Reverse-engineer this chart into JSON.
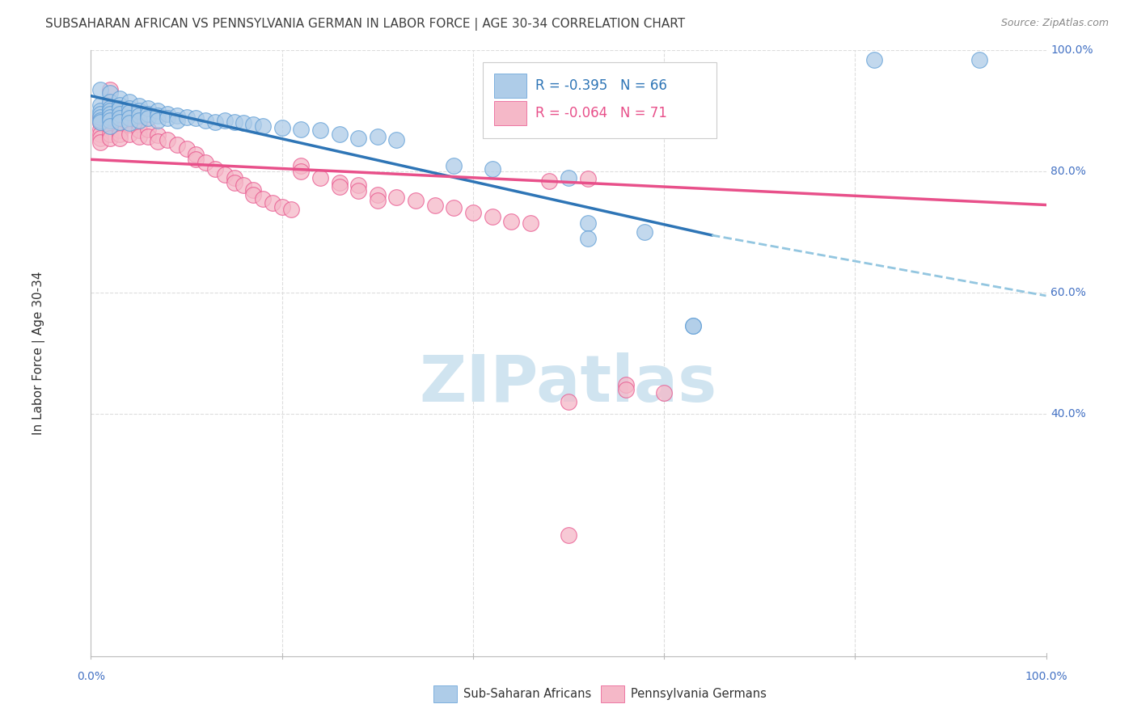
{
  "title": "SUBSAHARAN AFRICAN VS PENNSYLVANIA GERMAN IN LABOR FORCE | AGE 30-34 CORRELATION CHART",
  "source": "Source: ZipAtlas.com",
  "ylabel": "In Labor Force | Age 30-34",
  "xlim": [
    0.0,
    1.0
  ],
  "ylim": [
    0.0,
    1.0
  ],
  "legend_r_blue": "-0.395",
  "legend_n_blue": "66",
  "legend_r_pink": "-0.064",
  "legend_n_pink": "71",
  "blue_fill": "#AECCE8",
  "pink_fill": "#F5B8C8",
  "blue_edge": "#5B9BD5",
  "pink_edge": "#E8508A",
  "trendline_blue_solid": "#2E75B6",
  "trendline_pink_solid": "#E8508A",
  "trendline_blue_dash": "#93C6E0",
  "watermark_color": "#D0E4F0",
  "background_color": "#FFFFFF",
  "gridline_color": "#DDDDDD",
  "axis_label_color": "#4472C4",
  "title_color": "#404040",
  "blue_scatter": [
    [
      0.01,
      0.935
    ],
    [
      0.01,
      0.91
    ],
    [
      0.01,
      0.9
    ],
    [
      0.01,
      0.895
    ],
    [
      0.01,
      0.89
    ],
    [
      0.01,
      0.885
    ],
    [
      0.01,
      0.882
    ],
    [
      0.02,
      0.93
    ],
    [
      0.02,
      0.915
    ],
    [
      0.02,
      0.905
    ],
    [
      0.02,
      0.9
    ],
    [
      0.02,
      0.895
    ],
    [
      0.02,
      0.89
    ],
    [
      0.02,
      0.885
    ],
    [
      0.02,
      0.875
    ],
    [
      0.03,
      0.92
    ],
    [
      0.03,
      0.91
    ],
    [
      0.03,
      0.905
    ],
    [
      0.03,
      0.895
    ],
    [
      0.03,
      0.888
    ],
    [
      0.03,
      0.882
    ],
    [
      0.04,
      0.915
    ],
    [
      0.04,
      0.905
    ],
    [
      0.04,
      0.898
    ],
    [
      0.04,
      0.888
    ],
    [
      0.04,
      0.88
    ],
    [
      0.05,
      0.908
    ],
    [
      0.05,
      0.9
    ],
    [
      0.05,
      0.893
    ],
    [
      0.05,
      0.885
    ],
    [
      0.06,
      0.905
    ],
    [
      0.06,
      0.895
    ],
    [
      0.06,
      0.888
    ],
    [
      0.07,
      0.9
    ],
    [
      0.07,
      0.892
    ],
    [
      0.07,
      0.885
    ],
    [
      0.08,
      0.895
    ],
    [
      0.08,
      0.888
    ],
    [
      0.09,
      0.892
    ],
    [
      0.09,
      0.885
    ],
    [
      0.1,
      0.89
    ],
    [
      0.11,
      0.888
    ],
    [
      0.12,
      0.885
    ],
    [
      0.13,
      0.882
    ],
    [
      0.14,
      0.885
    ],
    [
      0.15,
      0.882
    ],
    [
      0.16,
      0.88
    ],
    [
      0.17,
      0.878
    ],
    [
      0.18,
      0.875
    ],
    [
      0.2,
      0.872
    ],
    [
      0.22,
      0.87
    ],
    [
      0.24,
      0.868
    ],
    [
      0.26,
      0.862
    ],
    [
      0.28,
      0.855
    ],
    [
      0.3,
      0.858
    ],
    [
      0.32,
      0.852
    ],
    [
      0.38,
      0.81
    ],
    [
      0.42,
      0.805
    ],
    [
      0.5,
      0.79
    ],
    [
      0.52,
      0.715
    ],
    [
      0.52,
      0.69
    ],
    [
      0.58,
      0.7
    ],
    [
      0.63,
      0.545
    ],
    [
      0.63,
      0.545
    ],
    [
      0.82,
      0.985
    ],
    [
      0.93,
      0.985
    ]
  ],
  "pink_scatter": [
    [
      0.01,
      0.89
    ],
    [
      0.01,
      0.88
    ],
    [
      0.01,
      0.87
    ],
    [
      0.01,
      0.862
    ],
    [
      0.01,
      0.855
    ],
    [
      0.01,
      0.848
    ],
    [
      0.02,
      0.935
    ],
    [
      0.02,
      0.91
    ],
    [
      0.02,
      0.9
    ],
    [
      0.02,
      0.89
    ],
    [
      0.02,
      0.882
    ],
    [
      0.02,
      0.875
    ],
    [
      0.02,
      0.862
    ],
    [
      0.02,
      0.855
    ],
    [
      0.03,
      0.9
    ],
    [
      0.03,
      0.89
    ],
    [
      0.03,
      0.88
    ],
    [
      0.03,
      0.868
    ],
    [
      0.03,
      0.862
    ],
    [
      0.03,
      0.855
    ],
    [
      0.04,
      0.888
    ],
    [
      0.04,
      0.878
    ],
    [
      0.04,
      0.862
    ],
    [
      0.05,
      0.878
    ],
    [
      0.05,
      0.868
    ],
    [
      0.05,
      0.858
    ],
    [
      0.06,
      0.87
    ],
    [
      0.06,
      0.858
    ],
    [
      0.07,
      0.86
    ],
    [
      0.07,
      0.85
    ],
    [
      0.08,
      0.852
    ],
    [
      0.09,
      0.845
    ],
    [
      0.1,
      0.838
    ],
    [
      0.11,
      0.828
    ],
    [
      0.11,
      0.82
    ],
    [
      0.12,
      0.815
    ],
    [
      0.13,
      0.805
    ],
    [
      0.14,
      0.795
    ],
    [
      0.15,
      0.79
    ],
    [
      0.15,
      0.782
    ],
    [
      0.16,
      0.778
    ],
    [
      0.17,
      0.77
    ],
    [
      0.17,
      0.762
    ],
    [
      0.18,
      0.755
    ],
    [
      0.19,
      0.748
    ],
    [
      0.2,
      0.742
    ],
    [
      0.21,
      0.738
    ],
    [
      0.22,
      0.81
    ],
    [
      0.22,
      0.8
    ],
    [
      0.24,
      0.79
    ],
    [
      0.26,
      0.782
    ],
    [
      0.26,
      0.775
    ],
    [
      0.28,
      0.778
    ],
    [
      0.28,
      0.768
    ],
    [
      0.3,
      0.762
    ],
    [
      0.3,
      0.752
    ],
    [
      0.32,
      0.758
    ],
    [
      0.34,
      0.752
    ],
    [
      0.36,
      0.745
    ],
    [
      0.38,
      0.74
    ],
    [
      0.4,
      0.732
    ],
    [
      0.42,
      0.725
    ],
    [
      0.44,
      0.718
    ],
    [
      0.46,
      0.715
    ],
    [
      0.48,
      0.785
    ],
    [
      0.5,
      0.42
    ],
    [
      0.52,
      0.788
    ],
    [
      0.56,
      0.448
    ],
    [
      0.56,
      0.44
    ],
    [
      0.6,
      0.435
    ],
    [
      0.5,
      0.2
    ]
  ]
}
